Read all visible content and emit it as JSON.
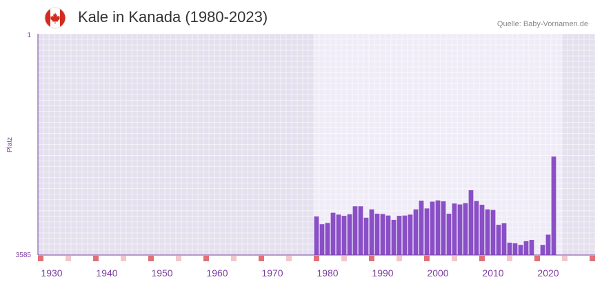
{
  "header": {
    "title": "Kale in Kanada (1980-2023)",
    "source": "Quelle: Baby-Vornamen.de",
    "flag_icon": "canada-flag-icon"
  },
  "colors": {
    "bar": "#8a4fc7",
    "bg_band": "#e4e0ee",
    "bg_range": "#efecf7",
    "axis": "#7b3fa0",
    "decade_marker": "#e07078",
    "half_decade_marker": "#f3c6cc"
  },
  "chart_data": {
    "type": "bar",
    "title": "Kale in Kanada (1980-2023)",
    "xlabel": "",
    "ylabel": "Platz",
    "x_range": [
      1928,
      2029
    ],
    "highlight_range": [
      1978,
      2022
    ],
    "y_axis": {
      "top_label": "1",
      "bottom_label": "3585",
      "inverted": true,
      "min_rank": 1,
      "max_rank": 3585
    },
    "x_ticks": [
      "1930",
      "1940",
      "1950",
      "1960",
      "1970",
      "1980",
      "1990",
      "2000",
      "2010",
      "2020"
    ],
    "x": [
      1978,
      1979,
      1980,
      1981,
      1982,
      1983,
      1984,
      1985,
      1986,
      1987,
      1988,
      1989,
      1990,
      1991,
      1992,
      1993,
      1994,
      1995,
      1996,
      1997,
      1998,
      1999,
      2000,
      2001,
      2002,
      2003,
      2004,
      2005,
      2006,
      2007,
      2008,
      2009,
      2010,
      2011,
      2012,
      2013,
      2014,
      2015,
      2016,
      2017,
      2018,
      2019,
      2020,
      2021,
      2022
    ],
    "values": [
      2960,
      3085,
      3065,
      2900,
      2930,
      2950,
      2925,
      2795,
      2795,
      2980,
      2845,
      2915,
      2920,
      2945,
      3015,
      2950,
      2945,
      2930,
      2845,
      2705,
      2830,
      2720,
      2700,
      2715,
      2915,
      2750,
      2765,
      2745,
      2535,
      2710,
      2770,
      2845,
      2855,
      3095,
      3070,
      3385,
      3395,
      3420,
      3360,
      3340,
      3585,
      3420,
      3255,
      1990,
      3585
    ],
    "values_note": "Rank (Platz) per year; 3585 at 2018 and 2022 indicates no ranking (no bar drawn)",
    "missing": [
      2018,
      2022
    ]
  }
}
